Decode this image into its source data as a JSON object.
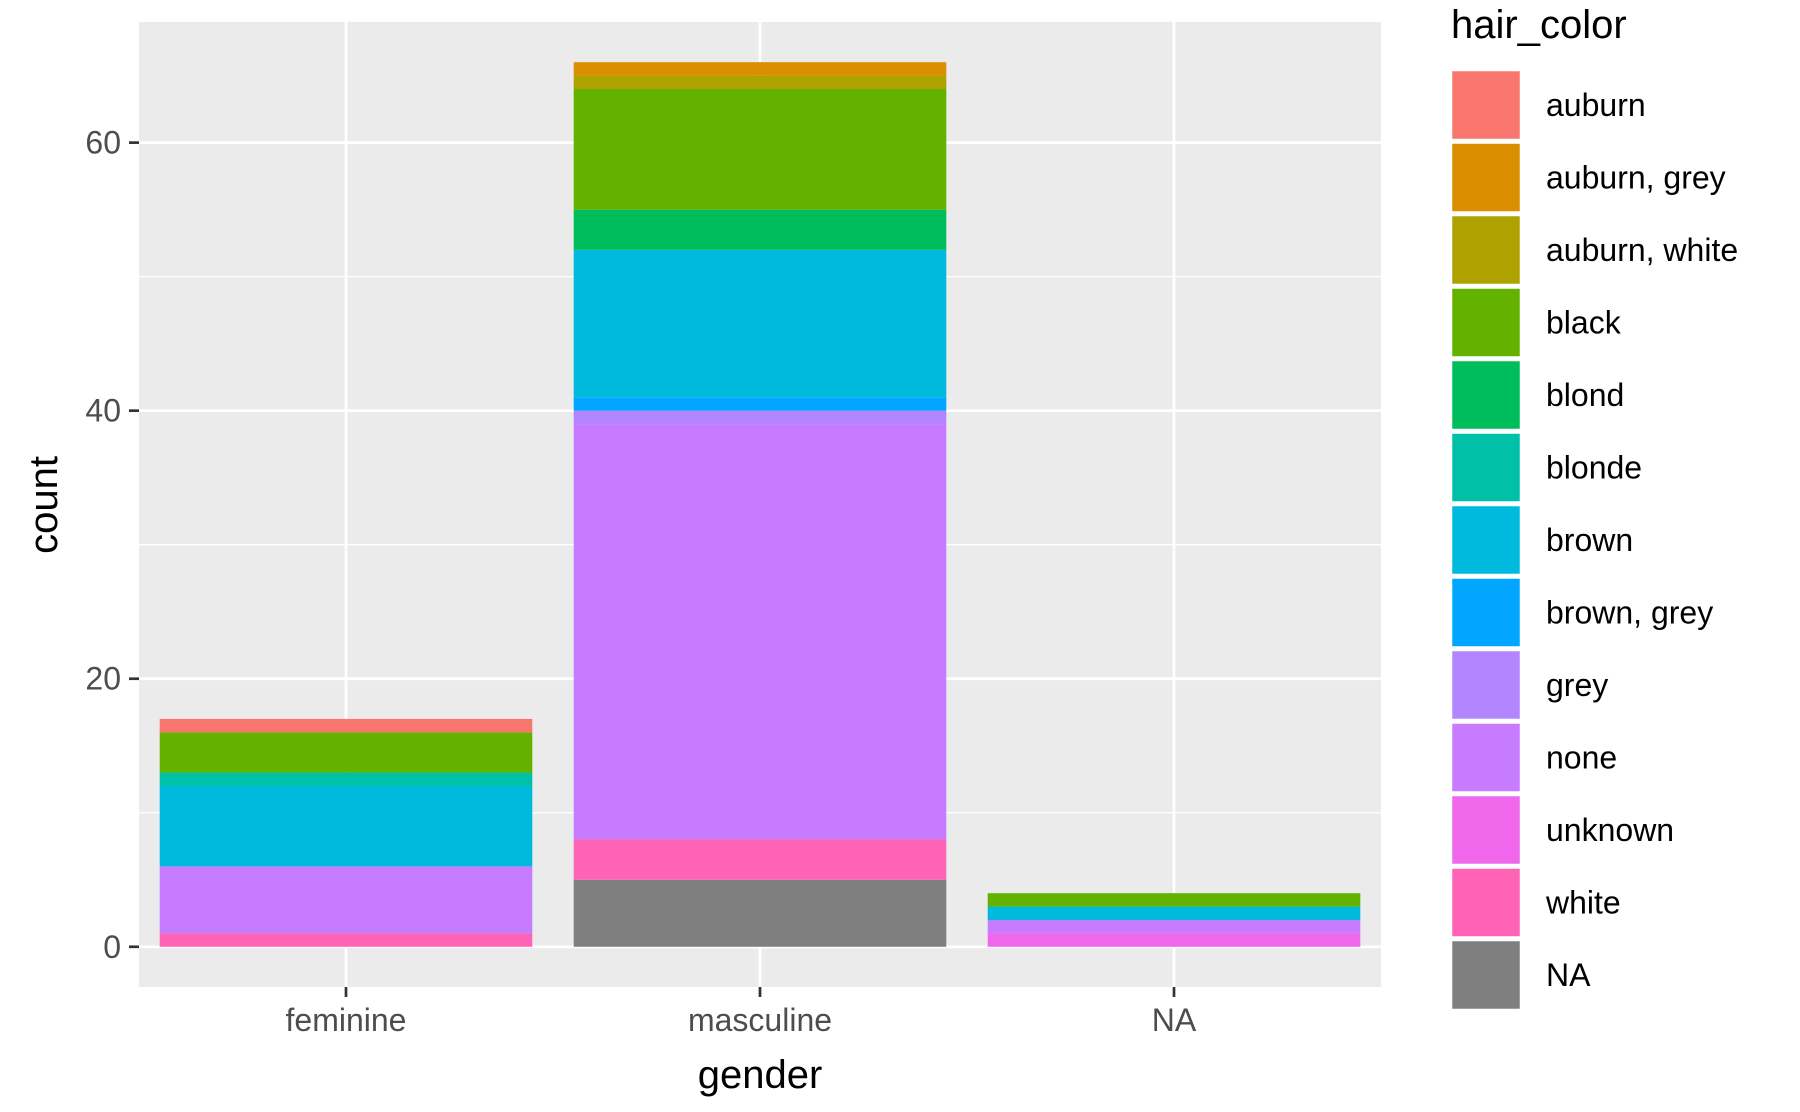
{
  "chart_data": {
    "type": "bar",
    "stacked": true,
    "xlabel": "gender",
    "ylabel": "count",
    "categories": [
      "feminine",
      "masculine",
      "NA"
    ],
    "ylim": [
      -3,
      69
    ],
    "yticks": [
      0,
      20,
      40,
      60
    ],
    "grid": true,
    "legend": {
      "title": "hair_color",
      "position": "right"
    },
    "series": [
      {
        "name": "auburn",
        "color": "#F8766D",
        "values": [
          1,
          0,
          0
        ]
      },
      {
        "name": "auburn, grey",
        "color": "#DB8E00",
        "values": [
          0,
          1,
          0
        ]
      },
      {
        "name": "auburn, white",
        "color": "#AEA200",
        "values": [
          0,
          1,
          0
        ]
      },
      {
        "name": "black",
        "color": "#64B200",
        "values": [
          3,
          9,
          1
        ]
      },
      {
        "name": "blond",
        "color": "#00BD5C",
        "values": [
          0,
          3,
          0
        ]
      },
      {
        "name": "blonde",
        "color": "#00C1A7",
        "values": [
          1,
          0,
          0
        ]
      },
      {
        "name": "brown",
        "color": "#00BADE",
        "values": [
          6,
          11,
          1
        ]
      },
      {
        "name": "brown, grey",
        "color": "#00A6FF",
        "values": [
          0,
          1,
          0
        ]
      },
      {
        "name": "grey",
        "color": "#B385FF",
        "values": [
          0,
          1,
          0
        ]
      },
      {
        "name": "none",
        "color": "#C77CFF",
        "values": [
          5,
          31,
          1
        ]
      },
      {
        "name": "unknown",
        "color": "#EF67EB",
        "values": [
          0,
          0,
          1
        ]
      },
      {
        "name": "white",
        "color": "#FF63B6",
        "values": [
          1,
          3,
          0
        ]
      },
      {
        "name": "NA",
        "color": "#7F7F7F",
        "values": [
          0,
          5,
          0
        ]
      }
    ]
  }
}
